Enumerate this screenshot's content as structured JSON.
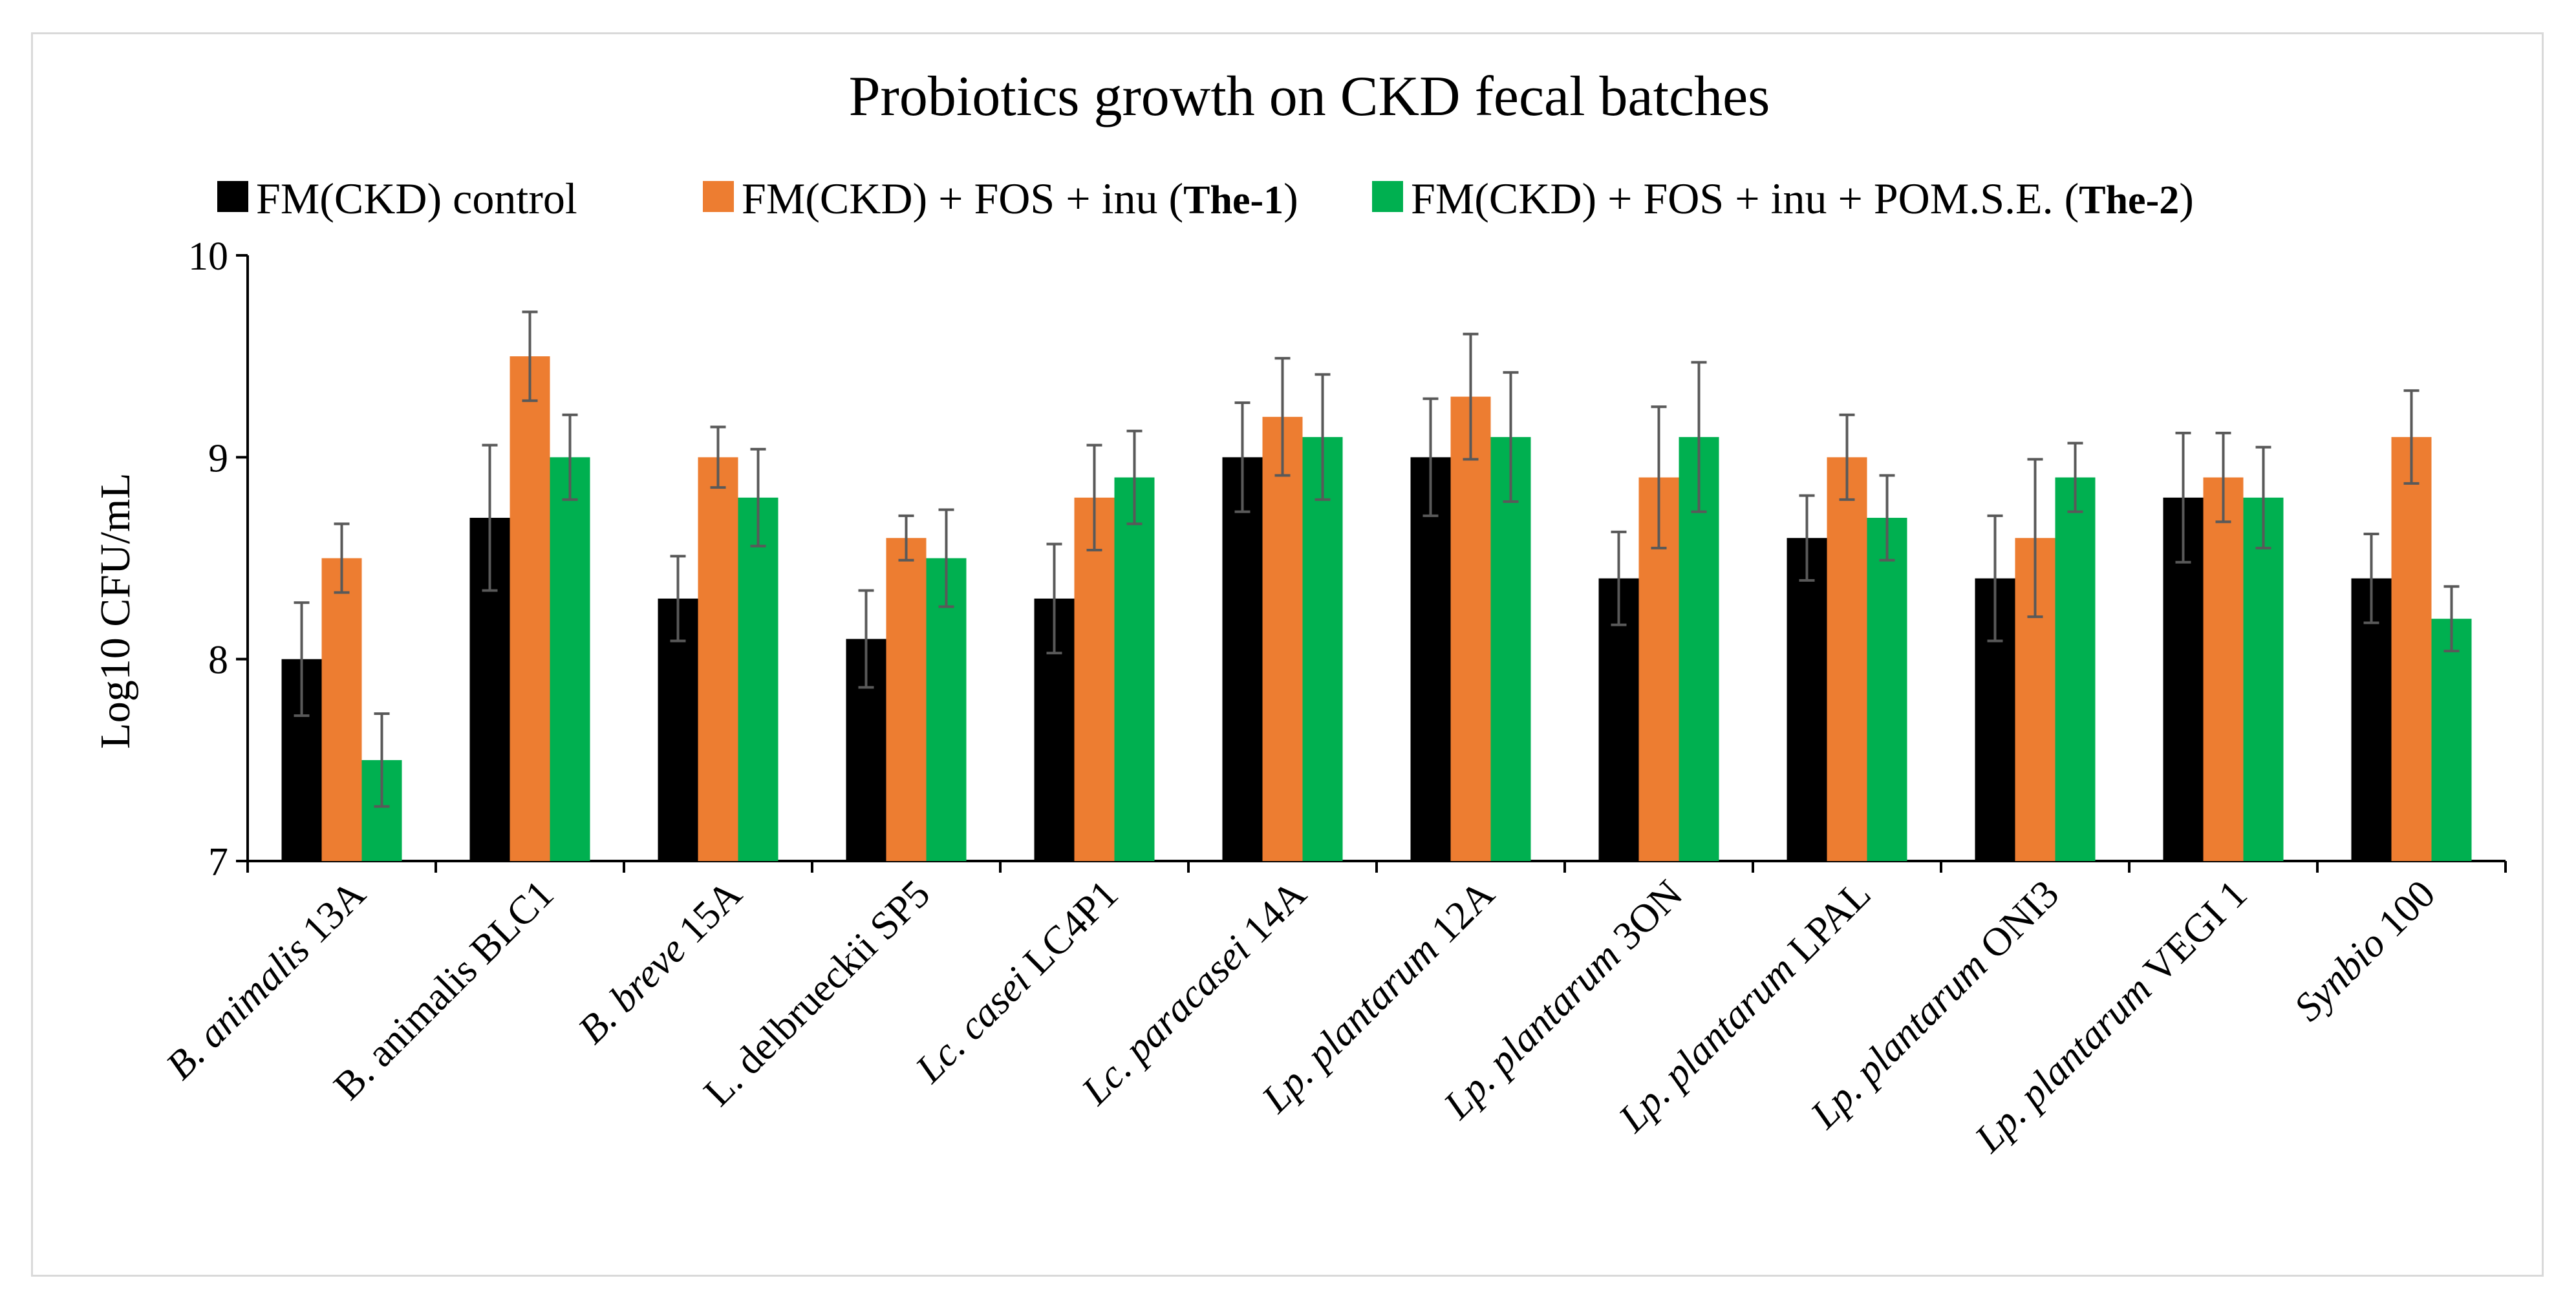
{
  "chart_data": {
    "type": "bar",
    "title": "Probiotics growth on CKD fecal batches",
    "ylabel": "Log10 CFU/mL",
    "xlabel": "",
    "ylim": [
      7,
      10
    ],
    "yticks": [
      7,
      8,
      9,
      10
    ],
    "legend_position": "top",
    "categories": [
      {
        "italic": "B. animalis",
        "plain": " 13A"
      },
      {
        "italic": "",
        "plain": "B. animalis BLC1"
      },
      {
        "italic": "B. breve",
        "plain": " 15A"
      },
      {
        "italic": "",
        "plain": "L. delbrueckii SP5"
      },
      {
        "italic": "Lc. casei",
        "plain": " LC4P1"
      },
      {
        "italic": "Lc. paracasei",
        "plain": " 14A"
      },
      {
        "italic": "Lp. plantarum",
        "plain": " 12A"
      },
      {
        "italic": "Lp. plantarum",
        "plain": " 3ON"
      },
      {
        "italic": "Lp. plantarum",
        "plain": " LPAL"
      },
      {
        "italic": "Lp. plantarum",
        "plain": " ONI3"
      },
      {
        "italic": "Lp. plantarum",
        "plain": " VEGI 1"
      },
      {
        "italic": "Synbio",
        "plain": " 100"
      }
    ],
    "series": [
      {
        "name": "FM(CKD) control",
        "name_bold": "",
        "name_suffix": "",
        "color": "#000000",
        "values": [
          8.0,
          8.7,
          8.3,
          8.1,
          8.3,
          9.0,
          9.0,
          8.4,
          8.6,
          8.4,
          8.8,
          8.4
        ],
        "errors": [
          0.28,
          0.36,
          0.21,
          0.24,
          0.27,
          0.27,
          0.29,
          0.23,
          0.21,
          0.31,
          0.32,
          0.22
        ]
      },
      {
        "name": "FM(CKD) + FOS + inu (",
        "name_bold": "The-1",
        "name_suffix": ")",
        "color": "#ed7d31",
        "values": [
          8.5,
          9.5,
          9.0,
          8.6,
          8.8,
          9.2,
          9.3,
          8.9,
          9.0,
          8.6,
          8.9,
          9.1
        ],
        "errors": [
          0.17,
          0.22,
          0.15,
          0.11,
          0.26,
          0.29,
          0.31,
          0.35,
          0.21,
          0.39,
          0.22,
          0.23
        ]
      },
      {
        "name": "FM(CKD) + FOS + inu + POM.S.E. (",
        "name_bold": "The-2",
        "name_suffix": ")",
        "color": "#00b050",
        "values": [
          7.5,
          9.0,
          8.8,
          8.5,
          8.9,
          9.1,
          9.1,
          9.1,
          8.7,
          8.9,
          8.8,
          8.2
        ],
        "errors": [
          0.23,
          0.21,
          0.24,
          0.24,
          0.23,
          0.31,
          0.32,
          0.37,
          0.21,
          0.17,
          0.25,
          0.16
        ]
      }
    ]
  }
}
